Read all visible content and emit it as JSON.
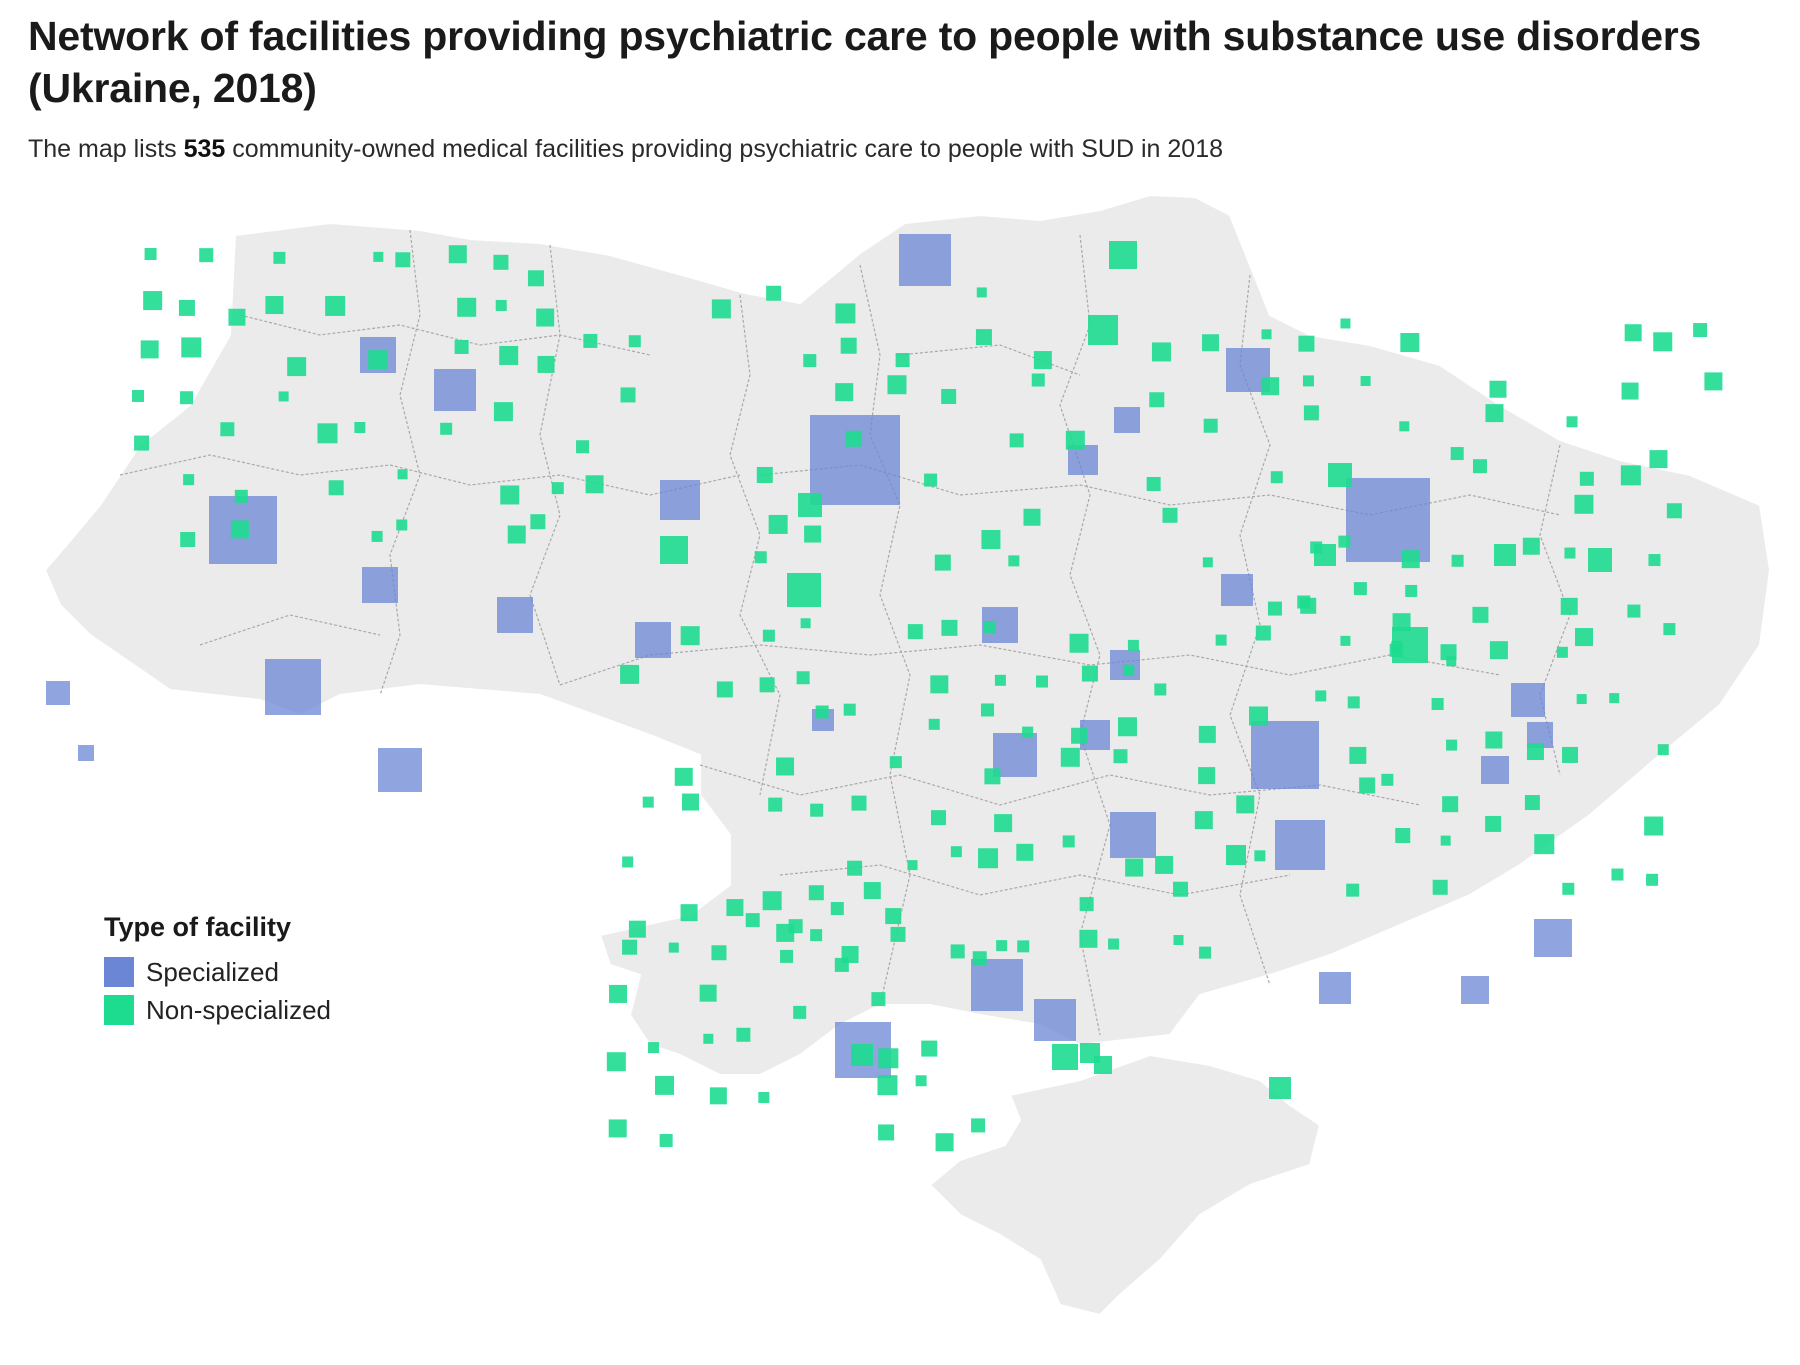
{
  "header": {
    "title": "Network of facilities providing psychiatric care to people with substance use disorders (Ukraine, 2018)",
    "subtitle_prefix": "The map lists ",
    "subtitle_count": "535",
    "subtitle_suffix": " community-owned medical facilities providing psychiatric care to people with SUD in 2018"
  },
  "legend": {
    "title": "Type of facility",
    "items": [
      {
        "label": "Specialized",
        "color": "#6b86d4"
      },
      {
        "label": "Non-specialized",
        "color": "#1ddc8f"
      }
    ]
  },
  "colors": {
    "land": "#ebebeb",
    "border": "#a9a9a9",
    "specialized": "#6b86d4",
    "non_specialized": "#1ddc8f"
  }
}
